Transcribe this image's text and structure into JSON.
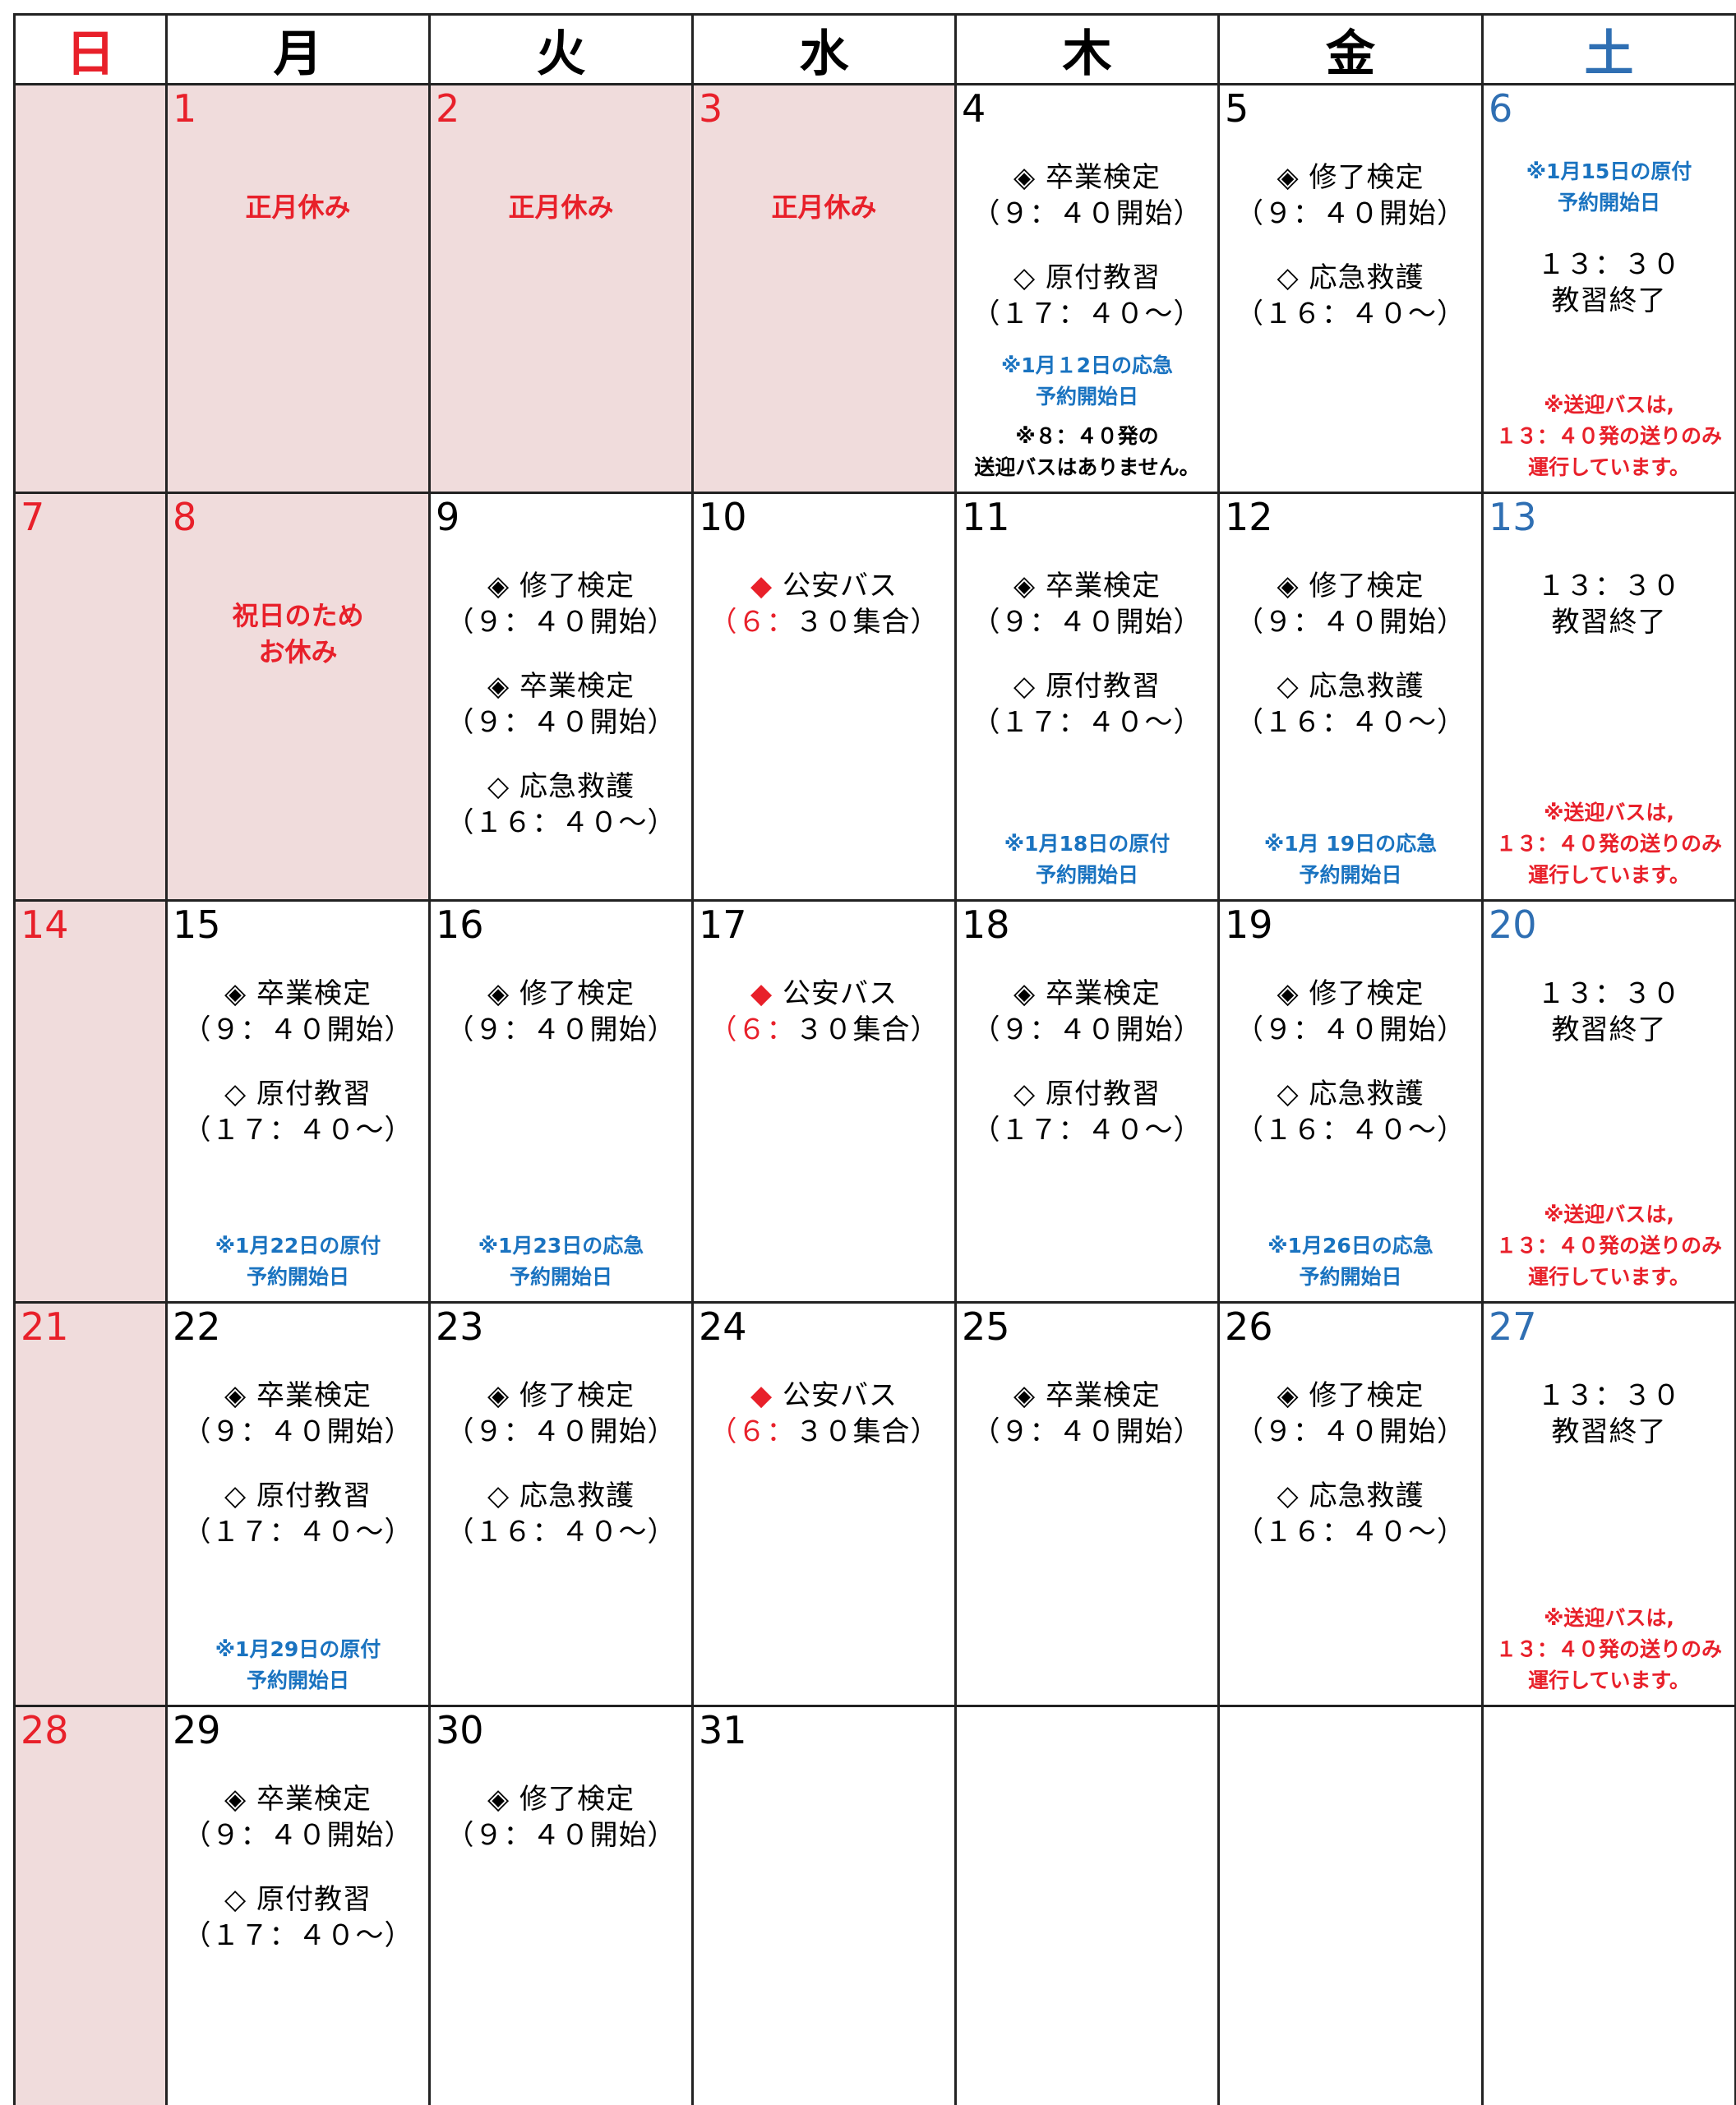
{
  "header": {
    "days": [
      "日",
      "月",
      "火",
      "水",
      "木",
      "金",
      "土"
    ],
    "colors": [
      "#e8202a",
      "#000000",
      "#000000",
      "#000000",
      "#000000",
      "#000000",
      "#2f6fb3"
    ]
  },
  "weeks": [
    [
      {
        "shaded": true
      },
      {
        "day": "1",
        "day_color": "#e8202a",
        "shaded": true,
        "blocks": [
          {
            "style": "holiday",
            "color": "#e8202a",
            "lines": [
              "正月休み"
            ]
          }
        ]
      },
      {
        "day": "2",
        "day_color": "#e8202a",
        "shaded": true,
        "blocks": [
          {
            "style": "holiday",
            "color": "#e8202a",
            "lines": [
              "正月休み"
            ]
          }
        ]
      },
      {
        "day": "3",
        "day_color": "#e8202a",
        "shaded": true,
        "blocks": [
          {
            "style": "holiday",
            "color": "#e8202a",
            "lines": [
              "正月休み"
            ]
          }
        ]
      },
      {
        "day": "4",
        "day_color": "#000000",
        "blocks": [
          {
            "style": "event",
            "color": "#000000",
            "lines": [
              "◈ 卒業検定",
              "（９：４０開始）"
            ]
          },
          {
            "style": "event",
            "color": "#000000",
            "lines": [
              "◇ 原付教習",
              "（１７：４０～）"
            ]
          },
          {
            "style": "note",
            "color": "#1a73c0",
            "lines": [
              "※1月１2日の応急",
              "予約開始日"
            ]
          },
          {
            "style": "note",
            "color": "#000000",
            "lines": [
              "※８：４０発の",
              "送迎バスはありません。"
            ]
          }
        ]
      },
      {
        "day": "5",
        "day_color": "#000000",
        "blocks": [
          {
            "style": "event",
            "color": "#000000",
            "lines": [
              "◈ 修了検定",
              "（９：４０開始）"
            ]
          },
          {
            "style": "event",
            "color": "#000000",
            "lines": [
              "◇ 応急救護",
              "（１６：４０～）"
            ]
          }
        ]
      },
      {
        "day": "6",
        "day_color": "#2f6fb3",
        "blocks": [
          {
            "style": "note",
            "color": "#1a73c0",
            "lines": [
              "※1月15日の原付",
              "予約開始日"
            ]
          },
          {
            "style": "event",
            "color": "#000000",
            "lines": [
              "１３：３０",
              "教習終了"
            ]
          },
          {
            "style": "note",
            "color": "#e8202a",
            "lines": [
              "※送迎バスは,",
              "１３：４０発の送りのみ",
              "運行しています。"
            ]
          }
        ]
      }
    ],
    [
      {
        "day": "7",
        "day_color": "#e8202a",
        "shaded": true
      },
      {
        "day": "8",
        "day_color": "#e8202a",
        "shaded": true,
        "blocks": [
          {
            "style": "holiday",
            "color": "#e8202a",
            "lines": [
              "祝日のため",
              "お休み"
            ]
          }
        ]
      },
      {
        "day": "9",
        "day_color": "#000000",
        "blocks": [
          {
            "style": "event",
            "color": "#000000",
            "lines": [
              "◈ 修了検定",
              "（９：４０開始）"
            ]
          },
          {
            "style": "event",
            "color": "#000000",
            "lines": [
              "◈ 卒業検定",
              "（９：４０開始）"
            ]
          },
          {
            "style": "event",
            "color": "#000000",
            "lines": [
              "◇ 応急救護",
              "（１６：４０～）"
            ]
          }
        ]
      },
      {
        "day": "10",
        "day_color": "#000000",
        "blocks": [
          {
            "style": "event",
            "color": "#000000",
            "marker_color": "#e8202a",
            "lines": [
              "◆ 公安バス",
              "（６：３０集合）"
            ]
          }
        ]
      },
      {
        "day": "11",
        "day_color": "#000000",
        "blocks": [
          {
            "style": "event",
            "color": "#000000",
            "lines": [
              "◈ 卒業検定",
              "（９：４０開始）"
            ]
          },
          {
            "style": "event",
            "color": "#000000",
            "lines": [
              "◇ 原付教習",
              "（１７：４０～）"
            ]
          },
          {
            "style": "note",
            "color": "#1a73c0",
            "lines": [
              "※1月18日の原付",
              "予約開始日"
            ]
          }
        ]
      },
      {
        "day": "12",
        "day_color": "#000000",
        "blocks": [
          {
            "style": "event",
            "color": "#000000",
            "lines": [
              "◈ 修了検定",
              "（９：４０開始）"
            ]
          },
          {
            "style": "event",
            "color": "#000000",
            "lines": [
              "◇ 応急救護",
              "（１６：４０～）"
            ]
          },
          {
            "style": "note",
            "color": "#1a73c0",
            "lines": [
              "※1月 19日の応急",
              "予約開始日"
            ]
          }
        ]
      },
      {
        "day": "13",
        "day_color": "#2f6fb3",
        "blocks": [
          {
            "style": "event",
            "color": "#000000",
            "lines": [
              "１３：３０",
              "教習終了"
            ]
          },
          {
            "style": "note",
            "color": "#e8202a",
            "lines": [
              "※送迎バスは,",
              "１３：４０発の送りのみ",
              "運行しています。"
            ]
          }
        ]
      }
    ],
    [
      {
        "day": "14",
        "day_color": "#e8202a",
        "shaded": true
      },
      {
        "day": "15",
        "day_color": "#000000",
        "blocks": [
          {
            "style": "event",
            "color": "#000000",
            "lines": [
              "◈ 卒業検定",
              "（９：４０開始）"
            ]
          },
          {
            "style": "event",
            "color": "#000000",
            "lines": [
              "◇ 原付教習",
              "（１７：４０～）"
            ]
          },
          {
            "style": "note",
            "color": "#1a73c0",
            "lines": [
              "※1月22日の原付",
              "予約開始日"
            ]
          }
        ]
      },
      {
        "day": "16",
        "day_color": "#000000",
        "blocks": [
          {
            "style": "event",
            "color": "#000000",
            "lines": [
              "◈ 修了検定",
              "（９：４０開始）"
            ]
          },
          {
            "style": "note",
            "color": "#1a73c0",
            "lines": [
              "※1月23日の応急",
              "予約開始日"
            ]
          }
        ]
      },
      {
        "day": "17",
        "day_color": "#000000",
        "blocks": [
          {
            "style": "event",
            "color": "#000000",
            "marker_color": "#e8202a",
            "lines": [
              "◆ 公安バス",
              "（６：３０集合）"
            ]
          }
        ]
      },
      {
        "day": "18",
        "day_color": "#000000",
        "blocks": [
          {
            "style": "event",
            "color": "#000000",
            "lines": [
              "◈ 卒業検定",
              "（９：４０開始）"
            ]
          },
          {
            "style": "event",
            "color": "#000000",
            "lines": [
              "◇ 原付教習",
              "（１７：４０～）"
            ]
          }
        ]
      },
      {
        "day": "19",
        "day_color": "#000000",
        "blocks": [
          {
            "style": "event",
            "color": "#000000",
            "lines": [
              "◈ 修了検定",
              "（９：４０開始）"
            ]
          },
          {
            "style": "event",
            "color": "#000000",
            "lines": [
              "◇ 応急救護",
              "（１６：４０～）"
            ]
          },
          {
            "style": "note",
            "color": "#1a73c0",
            "lines": [
              "※1月26日の応急",
              "予約開始日"
            ]
          }
        ]
      },
      {
        "day": "20",
        "day_color": "#2f6fb3",
        "blocks": [
          {
            "style": "event",
            "color": "#000000",
            "lines": [
              "１３：３０",
              "教習終了"
            ]
          },
          {
            "style": "note",
            "color": "#e8202a",
            "lines": [
              "※送迎バスは,",
              "１３：４０発の送りのみ",
              "運行しています。"
            ]
          }
        ]
      }
    ],
    [
      {
        "day": "21",
        "day_color": "#e8202a",
        "shaded": true
      },
      {
        "day": "22",
        "day_color": "#000000",
        "blocks": [
          {
            "style": "event",
            "color": "#000000",
            "lines": [
              "◈ 卒業検定",
              "（９：４０開始）"
            ]
          },
          {
            "style": "event",
            "color": "#000000",
            "lines": [
              "◇ 原付教習",
              "（１７：４０～）"
            ]
          },
          {
            "style": "note",
            "color": "#1a73c0",
            "lines": [
              "※1月29日の原付",
              "予約開始日"
            ]
          }
        ]
      },
      {
        "day": "23",
        "day_color": "#000000",
        "blocks": [
          {
            "style": "event",
            "color": "#000000",
            "lines": [
              "◈ 修了検定",
              "（９：４０開始）"
            ]
          },
          {
            "style": "event",
            "color": "#000000",
            "lines": [
              "◇ 応急救護",
              "（１６：４０～）"
            ]
          }
        ]
      },
      {
        "day": "24",
        "day_color": "#000000",
        "blocks": [
          {
            "style": "event",
            "color": "#000000",
            "marker_color": "#e8202a",
            "lines": [
              "◆ 公安バス",
              "（６：３０集合）"
            ]
          }
        ]
      },
      {
        "day": "25",
        "day_color": "#000000",
        "blocks": [
          {
            "style": "event",
            "color": "#000000",
            "lines": [
              "◈ 卒業検定",
              "（９：４０開始）"
            ]
          }
        ]
      },
      {
        "day": "26",
        "day_color": "#000000",
        "blocks": [
          {
            "style": "event",
            "color": "#000000",
            "lines": [
              "◈ 修了検定",
              "（９：４０開始）"
            ]
          },
          {
            "style": "event",
            "color": "#000000",
            "lines": [
              "◇ 応急救護",
              "（１６：４０～）"
            ]
          }
        ]
      },
      {
        "day": "27",
        "day_color": "#2f6fb3",
        "blocks": [
          {
            "style": "event",
            "color": "#000000",
            "lines": [
              "１３：３０",
              "教習終了"
            ]
          },
          {
            "style": "note",
            "color": "#e8202a",
            "lines": [
              "※送迎バスは,",
              "１３：４０発の送りのみ",
              "運行しています。"
            ]
          }
        ]
      }
    ],
    [
      {
        "day": "28",
        "day_color": "#e8202a",
        "shaded": true
      },
      {
        "day": "29",
        "day_color": "#000000",
        "blocks": [
          {
            "style": "event",
            "color": "#000000",
            "lines": [
              "◈ 卒業検定",
              "（９：４０開始）"
            ]
          },
          {
            "style": "event",
            "color": "#000000",
            "lines": [
              "◇ 原付教習",
              "（１７：４０～）"
            ]
          }
        ]
      },
      {
        "day": "30",
        "day_color": "#000000",
        "blocks": [
          {
            "style": "event",
            "color": "#000000",
            "lines": [
              "◈ 修了検定",
              "（９：４０開始）"
            ]
          }
        ]
      },
      {
        "day": "31",
        "day_color": "#000000"
      },
      {},
      {},
      {}
    ]
  ]
}
